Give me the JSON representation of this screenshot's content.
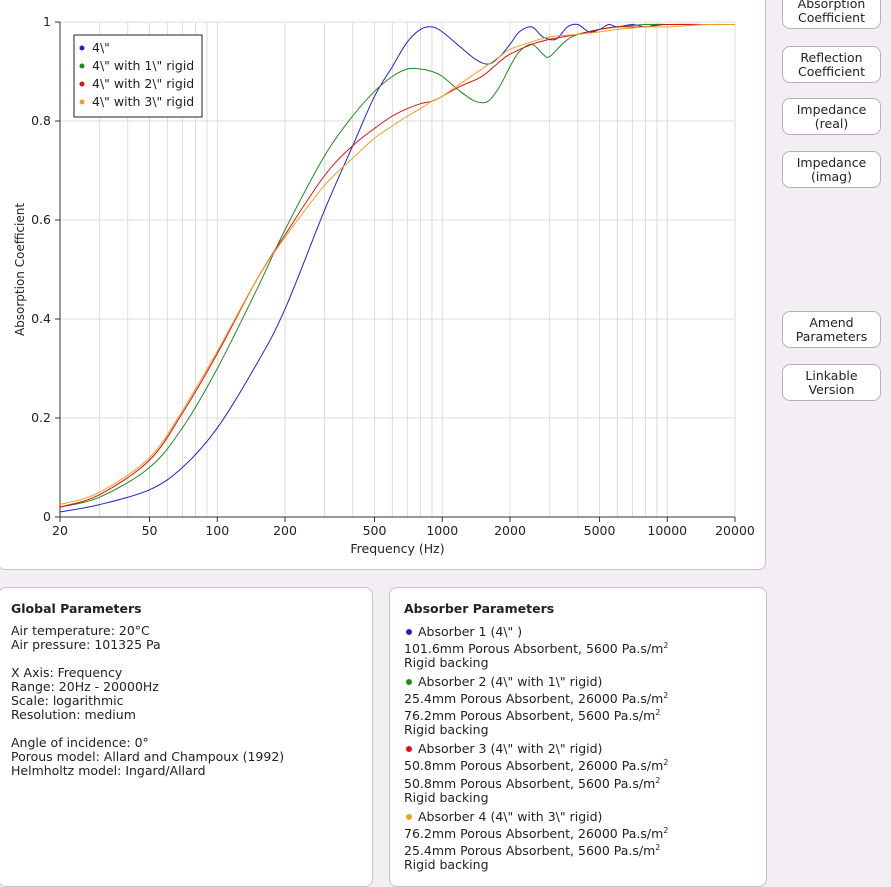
{
  "chart_data": {
    "type": "line",
    "xscale": "log",
    "xlim": [
      20,
      20000
    ],
    "ylim": [
      0,
      1
    ],
    "xlabel": "Frequency (Hz)",
    "ylabel": "Absorption Coefficient",
    "x_ticks": [
      "20",
      "50",
      "100",
      "200",
      "500",
      "1000",
      "2000",
      "5000",
      "10000",
      "20000"
    ],
    "y_ticks": [
      "0",
      "0.2",
      "0.4",
      "0.6",
      "0.8",
      "1"
    ],
    "grid": true,
    "legend_position": "top-left",
    "series": [
      {
        "name": "4\\\"",
        "color": "#2222cc",
        "x": [
          20,
          30,
          50,
          70,
          100,
          150,
          200,
          300,
          400,
          500,
          600,
          700,
          800,
          900,
          1000,
          1200,
          1400,
          1600,
          1800,
          2000,
          2200,
          2500,
          2800,
          3200,
          3600,
          4000,
          4500,
          5000,
          5500,
          6000,
          7000,
          8000,
          9000,
          10000,
          12000,
          15000,
          20000
        ],
        "y": [
          0.01,
          0.025,
          0.055,
          0.1,
          0.18,
          0.31,
          0.42,
          0.62,
          0.75,
          0.85,
          0.91,
          0.96,
          0.985,
          0.99,
          0.98,
          0.95,
          0.925,
          0.915,
          0.93,
          0.955,
          0.98,
          0.99,
          0.97,
          0.965,
          0.99,
          0.995,
          0.98,
          0.985,
          0.995,
          0.99,
          0.995,
          0.99,
          0.995,
          0.995,
          0.995,
          0.995,
          0.995
        ]
      },
      {
        "name": "4\\\" with 1\\\" rigid",
        "color": "#1e8a1e",
        "x": [
          20,
          30,
          50,
          70,
          100,
          150,
          200,
          300,
          400,
          500,
          600,
          700,
          800,
          900,
          1000,
          1200,
          1400,
          1600,
          1800,
          2000,
          2200,
          2500,
          2800,
          3000,
          3500,
          4000,
          5000,
          6000,
          8000,
          10000,
          15000,
          20000
        ],
        "y": [
          0.02,
          0.04,
          0.1,
          0.18,
          0.3,
          0.46,
          0.58,
          0.73,
          0.81,
          0.86,
          0.89,
          0.905,
          0.905,
          0.9,
          0.89,
          0.86,
          0.84,
          0.84,
          0.87,
          0.91,
          0.94,
          0.955,
          0.935,
          0.93,
          0.96,
          0.975,
          0.985,
          0.99,
          0.995,
          0.995,
          0.995,
          0.995
        ]
      },
      {
        "name": "4\\\" with 2\\\" rigid",
        "color": "#e01010",
        "x": [
          20,
          30,
          50,
          70,
          100,
          150,
          200,
          300,
          400,
          500,
          600,
          700,
          800,
          900,
          1000,
          1200,
          1500,
          1800,
          2000,
          2500,
          3000,
          4000,
          5000,
          6000,
          8000,
          10000,
          15000,
          20000
        ],
        "y": [
          0.02,
          0.045,
          0.115,
          0.21,
          0.33,
          0.48,
          0.57,
          0.69,
          0.75,
          0.785,
          0.81,
          0.825,
          0.835,
          0.84,
          0.85,
          0.87,
          0.89,
          0.92,
          0.935,
          0.955,
          0.965,
          0.975,
          0.985,
          0.99,
          0.99,
          0.995,
          0.995,
          0.995
        ]
      },
      {
        "name": "4\\\" with 3\\\" rigid",
        "color": "#f0a020",
        "x": [
          20,
          30,
          50,
          70,
          100,
          150,
          200,
          300,
          400,
          500,
          600,
          700,
          800,
          900,
          1000,
          1200,
          1500,
          1800,
          2000,
          2500,
          3000,
          4000,
          5000,
          6000,
          8000,
          10000,
          15000,
          20000
        ],
        "y": [
          0.025,
          0.05,
          0.12,
          0.215,
          0.335,
          0.48,
          0.565,
          0.67,
          0.725,
          0.765,
          0.79,
          0.81,
          0.825,
          0.84,
          0.85,
          0.875,
          0.905,
          0.93,
          0.945,
          0.96,
          0.97,
          0.975,
          0.98,
          0.985,
          0.99,
          0.99,
          0.995,
          0.995
        ]
      }
    ]
  },
  "buttons": {
    "absorption": [
      "Absorption",
      "Coefficient"
    ],
    "reflection": [
      "Reflection",
      "Coefficient"
    ],
    "imp_real": [
      "Impedance",
      "(real)"
    ],
    "imp_imag": [
      "Impedance",
      "(imag)"
    ],
    "amend": [
      "Amend",
      "Parameters"
    ],
    "linkable": [
      "Linkable",
      "Version"
    ]
  },
  "global": {
    "title": "Global Parameters",
    "air_temp": "Air temperature: 20°C",
    "air_pressure": "Air pressure: 101325 Pa",
    "x_axis": "X Axis: Frequency",
    "range": "Range: 20Hz - 20000Hz",
    "scale": "Scale: logarithmic",
    "resolution": "Resolution: medium",
    "angle": "Angle of incidence: 0°",
    "porous_model": "Porous model: Allard and Champoux (1992)",
    "helmholtz_model": "Helmholtz model: Ingard/Allard"
  },
  "absorbers": {
    "title": "Absorber Parameters",
    "unit_suffix": "2",
    "items": [
      {
        "color": "#2222cc",
        "heading": "Absorber 1 (4\\\" )",
        "layers": [
          "101.6mm Porous Absorbent, 5600 Pa.s/m"
        ],
        "backing": "Rigid backing"
      },
      {
        "color": "#1e8a1e",
        "heading": "Absorber 2 (4\\\" with 1\\\" rigid)",
        "layers": [
          "25.4mm Porous Absorbent, 26000 Pa.s/m",
          "76.2mm Porous Absorbent, 5600 Pa.s/m"
        ],
        "backing": "Rigid backing"
      },
      {
        "color": "#e01010",
        "heading": "Absorber 3 (4\\\" with 2\\\" rigid)",
        "layers": [
          "50.8mm Porous Absorbent, 26000 Pa.s/m",
          "50.8mm Porous Absorbent, 5600 Pa.s/m"
        ],
        "backing": "Rigid backing"
      },
      {
        "color": "#f0a020",
        "heading": "Absorber 4 (4\\\" with 3\\\" rigid)",
        "layers": [
          "76.2mm Porous Absorbent, 26000 Pa.s/m",
          "25.4mm Porous Absorbent, 5600 Pa.s/m"
        ],
        "backing": "Rigid backing"
      }
    ]
  }
}
